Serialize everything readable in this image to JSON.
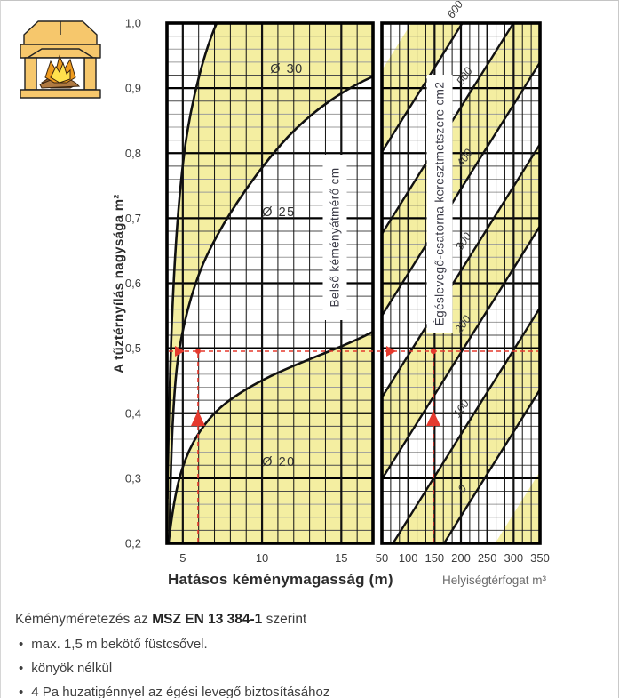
{
  "chart": {
    "y_axis": {
      "title": "A tűztérnyílás nagysága m²",
      "ticks": [
        "1,0",
        "0,9",
        "0,8",
        "0,7",
        "0,6",
        "0,5",
        "0,4",
        "0,3",
        "0,2"
      ]
    },
    "left_panel": {
      "x_ticks": [
        "5",
        "10",
        "15"
      ],
      "x_title": "Hatásos kéménymagasság (m)",
      "box_label": "Belső kéményátmérő cm",
      "curve_labels": [
        "Ø 30",
        "Ø 25",
        "Ø 20"
      ]
    },
    "right_panel": {
      "x_ticks": [
        "50",
        "100",
        "150",
        "200",
        "250",
        "300",
        "350"
      ],
      "x_title": "Helyiségtérfogat m³",
      "box_label": "Égéslevegő-csatorna keresztmetszere cm2",
      "diag_labels": [
        "600",
        "500",
        "400",
        "300",
        "200",
        "100",
        "0"
      ]
    },
    "colors": {
      "band_yellow": "#f4eea1",
      "red": "#e53a2e",
      "grid_dark": "#4a4a4a",
      "grid_gray": "#9b9b9b",
      "line_black": "#111111"
    }
  },
  "chart_data": {
    "type": "line",
    "title": "",
    "panels": [
      {
        "name": "chimney-diameter-panel",
        "xlabel": "Hatásos kéménymagasság (m)",
        "x_range": [
          4,
          17
        ],
        "x_ticks": [
          5,
          10,
          15
        ],
        "ylabel": "A tűztérnyílás nagysága m²",
        "y_range": [
          0.2,
          1.0
        ],
        "y_ticks": [
          1.0,
          0.9,
          0.8,
          0.7,
          0.6,
          0.5,
          0.4,
          0.3,
          0.2
        ],
        "grid": true,
        "series_label": "Belső kéményátmérő cm",
        "series": [
          {
            "name": "Ø 30",
            "points": [
              [
                7.1,
                1.0
              ],
              [
                6.0,
                0.9
              ],
              [
                5.2,
                0.82
              ],
              [
                4.8,
                0.72
              ],
              [
                4.5,
                0.62
              ],
              [
                4.2,
                0.5
              ],
              [
                4.1,
                0.4
              ]
            ]
          },
          {
            "name": "Ø 25",
            "points": [
              [
                17,
                0.92
              ],
              [
                13,
                0.86
              ],
              [
                10,
                0.78
              ],
              [
                7.5,
                0.69
              ],
              [
                6.0,
                0.63
              ],
              [
                5.2,
                0.56
              ],
              [
                4.7,
                0.48
              ],
              [
                4.4,
                0.38
              ],
              [
                4.2,
                0.21
              ]
            ]
          },
          {
            "name": "Ø 20",
            "points": [
              [
                4.1,
                0.2
              ],
              [
                5.0,
                0.31
              ],
              [
                6.0,
                0.37
              ],
              [
                8.0,
                0.42
              ],
              [
                10,
                0.455
              ],
              [
                13,
                0.485
              ],
              [
                17,
                0.525
              ]
            ]
          }
        ]
      },
      {
        "name": "combustion-air-panel",
        "xlabel": "Helyiségtérfogat m³",
        "x_range": [
          50,
          350
        ],
        "x_ticks": [
          50,
          100,
          150,
          200,
          250,
          300,
          350
        ],
        "ylabel": "A tűztérnyílás nagysága m²",
        "y_range": [
          0.2,
          1.0
        ],
        "grid": true,
        "lines_label": "Égéslevegő-csatorna keresztmetszere cm2",
        "diagonal_line_values_cm2": [
          0,
          100,
          200,
          300,
          400,
          500,
          600
        ]
      }
    ],
    "example_reading": {
      "tuzternyilas_m2": 0.5,
      "kemenymagassag_m": 6,
      "helyisegterfogat_m3": 150
    }
  },
  "notes": {
    "title_prefix": "Kéményméretezés az ",
    "title_bold": "MSZ EN 13 384-1",
    "title_suffix": " szerint",
    "bullet_glyph": "•",
    "bullets": [
      "max. 1,5 m bekötő füstcsővel.",
      "könyök nélkül",
      "4 Pa huzatigénnyel az égési levegő biztosításához"
    ]
  }
}
